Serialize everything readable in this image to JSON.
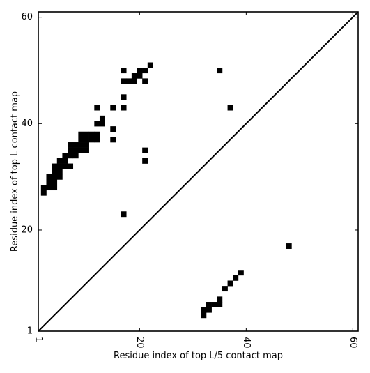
{
  "chart_data": {
    "type": "heatmap",
    "title": "",
    "xlabel": "Residue index of top L/5 contact map",
    "ylabel": "Residue index of top L contact map",
    "xlim": [
      1,
      61
    ],
    "ylim": [
      1,
      61
    ],
    "x_ticks": [
      "1",
      "20",
      "40",
      "60"
    ],
    "y_ticks": [
      "1",
      "20",
      "40",
      "60"
    ],
    "x_tick_values": [
      1,
      20,
      40,
      60
    ],
    "y_tick_values": [
      1,
      20,
      40,
      60
    ],
    "diagonal": true,
    "grid": false,
    "colors": {
      "cell": "#000000",
      "background": "#ffffff"
    },
    "upper_triangle_cells": [
      [
        22,
        51
      ],
      [
        17,
        50
      ],
      [
        20,
        50
      ],
      [
        21,
        50
      ],
      [
        35,
        50
      ],
      [
        19,
        49
      ],
      [
        20,
        49
      ],
      [
        17,
        48
      ],
      [
        18,
        48
      ],
      [
        19,
        48
      ],
      [
        21,
        48
      ],
      [
        17,
        45
      ],
      [
        12,
        43
      ],
      [
        15,
        43
      ],
      [
        17,
        43
      ],
      [
        37,
        43
      ],
      [
        13,
        41
      ],
      [
        12,
        40
      ],
      [
        13,
        40
      ],
      [
        15,
        39
      ],
      [
        9,
        38
      ],
      [
        10,
        38
      ],
      [
        11,
        38
      ],
      [
        12,
        38
      ],
      [
        9,
        37
      ],
      [
        10,
        37
      ],
      [
        11,
        37
      ],
      [
        12,
        37
      ],
      [
        15,
        37
      ],
      [
        7,
        36
      ],
      [
        8,
        36
      ],
      [
        9,
        36
      ],
      [
        10,
        36
      ],
      [
        7,
        35
      ],
      [
        8,
        35
      ],
      [
        9,
        35
      ],
      [
        10,
        35
      ],
      [
        21,
        35
      ],
      [
        6,
        34
      ],
      [
        7,
        34
      ],
      [
        8,
        34
      ],
      [
        5,
        33
      ],
      [
        6,
        33
      ],
      [
        21,
        33
      ],
      [
        4,
        32
      ],
      [
        5,
        32
      ],
      [
        6,
        32
      ],
      [
        7,
        32
      ],
      [
        4,
        31
      ],
      [
        5,
        31
      ],
      [
        3,
        30
      ],
      [
        4,
        30
      ],
      [
        5,
        30
      ],
      [
        3,
        29
      ],
      [
        4,
        29
      ],
      [
        2,
        28
      ],
      [
        3,
        28
      ],
      [
        4,
        28
      ],
      [
        2,
        27
      ],
      [
        17,
        23
      ]
    ],
    "lower_triangle_cells": [
      [
        48,
        17
      ],
      [
        39,
        12
      ],
      [
        38,
        11
      ],
      [
        37,
        10
      ],
      [
        36,
        9
      ],
      [
        35,
        7
      ],
      [
        33,
        6
      ],
      [
        34,
        6
      ],
      [
        35,
        6
      ],
      [
        32,
        5
      ],
      [
        33,
        5
      ],
      [
        32,
        4
      ]
    ]
  }
}
